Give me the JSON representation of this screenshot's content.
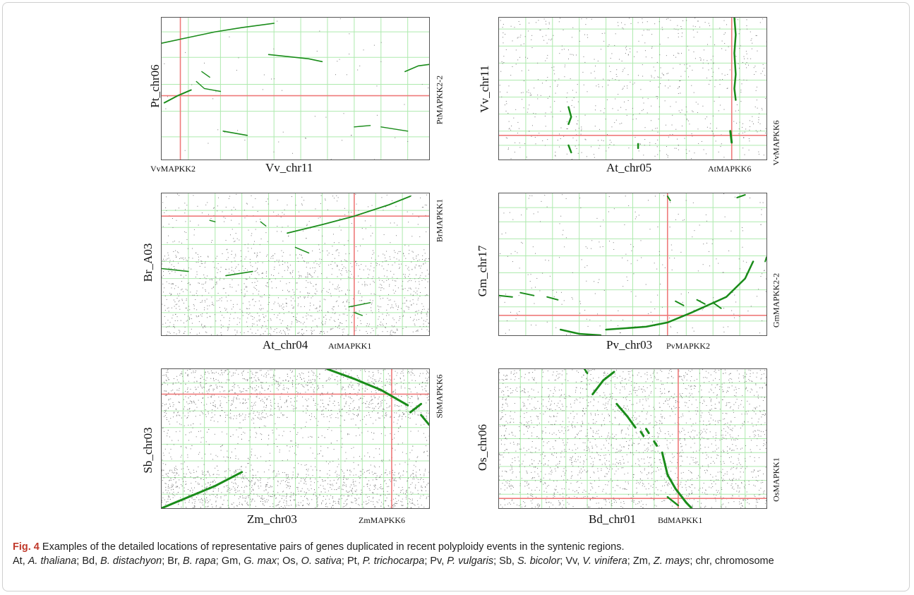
{
  "figure": {
    "caption_label": "Fig. 4",
    "caption_title": "Examples of the detailed locations of representative pairs of genes duplicated in recent polyploidy events in the syntenic regions.",
    "abbreviations": [
      {
        "abbr": "At",
        "species": "A. thaliana"
      },
      {
        "abbr": "Bd",
        "species": "B. distachyon"
      },
      {
        "abbr": "Br",
        "species": "B. rapa"
      },
      {
        "abbr": "Gm",
        "species": "G. max"
      },
      {
        "abbr": "Os",
        "species": "O. sativa"
      },
      {
        "abbr": "Pt",
        "species": "P. trichocarpa"
      },
      {
        "abbr": "Pv",
        "species": "P. vulgaris"
      },
      {
        "abbr": "Sb",
        "species": "S. bicolor"
      },
      {
        "abbr": "Vv",
        "species": "V. vinifera"
      },
      {
        "abbr": "Zm",
        "species": "Z. mays"
      },
      {
        "abbr": "chr",
        "species": "chromosome"
      }
    ]
  },
  "colors": {
    "grid": "#aeeaae",
    "marker_line": "#ef7a7a",
    "synteny": "#1a8c1a",
    "noise": "#7a7a7a",
    "caption_label": "#c0392b"
  },
  "panels": [
    {
      "id": "a",
      "ylabel": "Pt_chr06",
      "xlabel": "Vv_chr11",
      "gene_x": "VvMAPKK2",
      "gene_y": "PtMAPKK2-2"
    },
    {
      "id": "b",
      "ylabel": "Vv_chr11",
      "xlabel": "At_chr05",
      "gene_x": "AtMAPKK6",
      "gene_y": "VvMAPKK6"
    },
    {
      "id": "c",
      "ylabel": "Br_A03",
      "xlabel": "At_chr04",
      "gene_x": "AtMAPKK1",
      "gene_y": "BrMAPKK1"
    },
    {
      "id": "d",
      "ylabel": "Gm_chr17",
      "xlabel": "Pv_chr03",
      "gene_x": "PvMAPKK2",
      "gene_y": "GmMAPKK2-2"
    },
    {
      "id": "e",
      "ylabel": "Sb_chr03",
      "xlabel": "Zm_chr03",
      "gene_x": "ZmMAPKK6",
      "gene_y": "SbMAPKK6"
    },
    {
      "id": "f",
      "ylabel": "Os_chr06",
      "xlabel": "Bd_chr01",
      "gene_x": "BdMAPKK1",
      "gene_y": "OsMAPKK1"
    }
  ]
}
